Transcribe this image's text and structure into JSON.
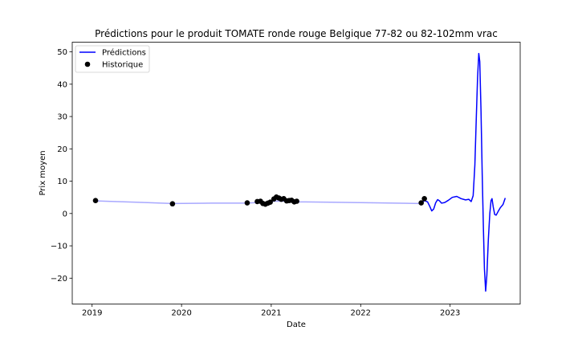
{
  "chart_data": {
    "type": "line",
    "title": "Prédictions pour le produit TOMATE ronde rouge Belgique 77-82 ou 82-102mm vrac",
    "xlabel": "Date",
    "ylabel": "Prix moyen",
    "xlim": [
      "2018-10-12",
      "2023-10-14"
    ],
    "ylim": [
      -28,
      53
    ],
    "x_ticks": [
      "2019-01-01",
      "2020-01-01",
      "2021-01-01",
      "2022-01-01",
      "2023-01-01"
    ],
    "x_tick_labels": [
      "2019",
      "2020",
      "2021",
      "2022",
      "2023"
    ],
    "y_ticks": [
      -20,
      -10,
      0,
      10,
      20,
      30,
      40,
      50
    ],
    "y_tick_labels": [
      "−20",
      "−10",
      "0",
      "10",
      "20",
      "30",
      "40",
      "50"
    ],
    "legend": {
      "position": "top-left",
      "entries": [
        "Prédictions",
        "Historique"
      ]
    },
    "colors": {
      "prediction": "#0000ff",
      "prediction_historical_segment": "#a8a8ff",
      "historique": "#000000"
    },
    "series": [
      {
        "name": "Prédictions",
        "style": "line",
        "points": [
          [
            "2019-01-15",
            3.9
          ],
          [
            "2019-07-01",
            3.5
          ],
          [
            "2019-11-25",
            3.1
          ],
          [
            "2020-05-01",
            3.2
          ],
          [
            "2020-09-25",
            3.2
          ],
          [
            "2020-11-05",
            3.4
          ],
          [
            "2020-12-15",
            3.5
          ],
          [
            "2021-01-15",
            3.8
          ],
          [
            "2021-03-01",
            3.8
          ],
          [
            "2021-04-15",
            3.6
          ],
          [
            "2021-09-01",
            3.5
          ],
          [
            "2022-03-01",
            3.3
          ],
          [
            "2022-09-01",
            3.1
          ],
          [
            "2022-09-18",
            4.0
          ],
          [
            "2022-10-01",
            3.6
          ],
          [
            "2022-10-10",
            2.2
          ],
          [
            "2022-10-18",
            0.8
          ],
          [
            "2022-10-26",
            1.4
          ],
          [
            "2022-11-03",
            3.3
          ],
          [
            "2022-11-11",
            4.3
          ],
          [
            "2022-11-19",
            3.9
          ],
          [
            "2022-11-27",
            3.2
          ],
          [
            "2022-12-10",
            3.4
          ],
          [
            "2022-12-25",
            4.1
          ],
          [
            "2023-01-10",
            5.0
          ],
          [
            "2023-01-28",
            5.3
          ],
          [
            "2023-02-15",
            4.6
          ],
          [
            "2023-03-05",
            4.2
          ],
          [
            "2023-03-18",
            4.4
          ],
          [
            "2023-03-28",
            3.7
          ],
          [
            "2023-04-05",
            5.5
          ],
          [
            "2023-04-12",
            15
          ],
          [
            "2023-04-18",
            30
          ],
          [
            "2023-04-23",
            42
          ],
          [
            "2023-04-28",
            49.5
          ],
          [
            "2023-05-02",
            47
          ],
          [
            "2023-05-07",
            32
          ],
          [
            "2023-05-12",
            12
          ],
          [
            "2023-05-17",
            -5
          ],
          [
            "2023-05-21",
            -17
          ],
          [
            "2023-05-26",
            -24
          ],
          [
            "2023-05-31",
            -19
          ],
          [
            "2023-06-06",
            -8
          ],
          [
            "2023-06-12",
            0
          ],
          [
            "2023-06-17",
            4
          ],
          [
            "2023-06-21",
            4.6
          ],
          [
            "2023-06-26",
            2
          ],
          [
            "2023-07-02",
            -0.3
          ],
          [
            "2023-07-08",
            -0.5
          ],
          [
            "2023-07-15",
            0.5
          ],
          [
            "2023-07-25",
            1.8
          ],
          [
            "2023-08-05",
            2.8
          ],
          [
            "2023-08-14",
            4.8
          ]
        ],
        "historical_end": "2022-09-01"
      },
      {
        "name": "Historique",
        "style": "markers",
        "points": [
          [
            "2019-01-15",
            4.0
          ],
          [
            "2019-11-25",
            3.0
          ],
          [
            "2020-09-25",
            3.3
          ],
          [
            "2020-11-05",
            3.7
          ],
          [
            "2020-11-18",
            3.8
          ],
          [
            "2020-11-28",
            3.1
          ],
          [
            "2020-12-08",
            2.9
          ],
          [
            "2020-12-18",
            3.2
          ],
          [
            "2020-12-28",
            3.5
          ],
          [
            "2021-01-12",
            4.5
          ],
          [
            "2021-01-22",
            5.1
          ],
          [
            "2021-02-01",
            4.8
          ],
          [
            "2021-02-11",
            4.4
          ],
          [
            "2021-02-21",
            4.6
          ],
          [
            "2021-03-05",
            3.9
          ],
          [
            "2021-03-15",
            4.0
          ],
          [
            "2021-03-25",
            4.1
          ],
          [
            "2021-04-05",
            3.6
          ],
          [
            "2021-04-15",
            3.8
          ],
          [
            "2022-09-05",
            3.3
          ],
          [
            "2022-09-18",
            4.6
          ]
        ]
      }
    ]
  }
}
